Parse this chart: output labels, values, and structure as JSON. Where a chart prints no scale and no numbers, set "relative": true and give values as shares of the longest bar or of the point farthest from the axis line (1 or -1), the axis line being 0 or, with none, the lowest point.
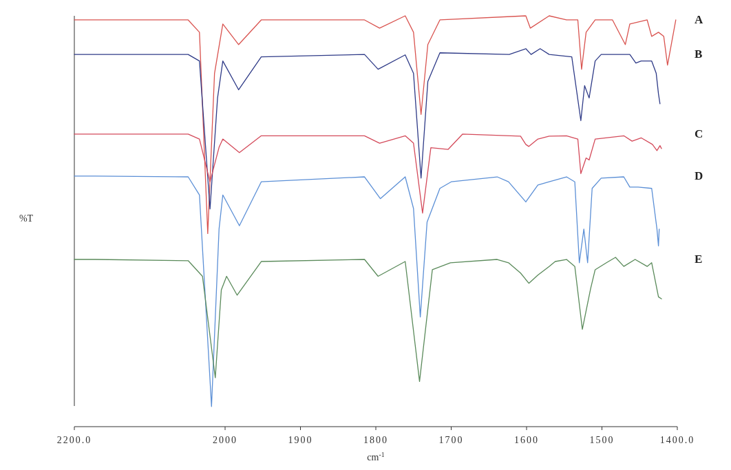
{
  "chart_data": {
    "type": "line",
    "xlabel": "cm$^{-1}$",
    "ylabel": "%T",
    "relative": true,
    "xlim": [
      2200,
      1400
    ],
    "xticks": [
      {
        "value": 2200,
        "label": "2200.0"
      },
      2000,
      1900,
      1800,
      1700,
      1600,
      1500,
      {
        "value": 1400,
        "label": "1400.0"
      }
    ],
    "series": [
      {
        "name": "A",
        "color": "#d9534f",
        "x": [
          2200,
          2172,
          2049,
          2034,
          2023,
          2014,
          2003,
          1982,
          1952,
          1815,
          1795,
          1761,
          1750,
          1740,
          1731,
          1715,
          1601,
          1595,
          1570,
          1547,
          1532,
          1527,
          1521,
          1509,
          1486,
          1469,
          1463,
          1440,
          1434,
          1425,
          1418,
          1413,
          1402
        ],
        "values": [
          0.99,
          0.99,
          0.99,
          0.96,
          0.47,
          0.86,
          0.98,
          0.93,
          0.99,
          0.99,
          0.97,
          1.0,
          0.96,
          0.76,
          0.93,
          0.99,
          1.0,
          0.97,
          1.0,
          0.99,
          0.99,
          0.87,
          0.96,
          0.99,
          0.99,
          0.93,
          0.98,
          0.99,
          0.95,
          0.96,
          0.95,
          0.88,
          0.99
        ]
      },
      {
        "name": "B",
        "color": "#2e3a87",
        "x": [
          2200,
          2172,
          2049,
          2034,
          2020,
          2010,
          2003,
          1982,
          1952,
          1815,
          1797,
          1761,
          1750,
          1740,
          1731,
          1715,
          1623,
          1601,
          1594,
          1582,
          1570,
          1540,
          1528,
          1523,
          1517,
          1509,
          1501,
          1463,
          1455,
          1448,
          1434,
          1428,
          1425,
          1423
        ],
        "values": [
          0.906,
          0.906,
          0.906,
          0.89,
          0.53,
          0.8,
          0.89,
          0.82,
          0.9,
          0.906,
          0.87,
          0.905,
          0.86,
          0.605,
          0.84,
          0.91,
          0.906,
          0.92,
          0.906,
          0.92,
          0.906,
          0.9,
          0.745,
          0.83,
          0.8,
          0.89,
          0.906,
          0.906,
          0.885,
          0.89,
          0.89,
          0.86,
          0.81,
          0.786
        ]
      },
      {
        "name": "C",
        "color": "#d44a5a",
        "x": [
          2200,
          2172,
          2049,
          2034,
          2020,
          2008,
          2003,
          1981,
          1952,
          1815,
          1795,
          1761,
          1750,
          1738,
          1727,
          1704,
          1685,
          1608,
          1601,
          1597,
          1585,
          1570,
          1547,
          1532,
          1528,
          1521,
          1517,
          1509,
          1471,
          1460,
          1448,
          1433,
          1427,
          1423,
          1421
        ],
        "values": [
          0.712,
          0.712,
          0.712,
          0.7,
          0.596,
          0.68,
          0.7,
          0.667,
          0.708,
          0.708,
          0.69,
          0.708,
          0.69,
          0.52,
          0.679,
          0.675,
          0.712,
          0.707,
          0.687,
          0.682,
          0.7,
          0.707,
          0.708,
          0.7,
          0.616,
          0.654,
          0.649,
          0.7,
          0.708,
          0.695,
          0.703,
          0.687,
          0.672,
          0.684,
          0.677
        ]
      },
      {
        "name": "D",
        "color": "#5b8fd6",
        "x": [
          2200,
          2172,
          2049,
          2034,
          2018,
          2008,
          2003,
          1981,
          1952,
          1815,
          1794,
          1761,
          1750,
          1741,
          1732,
          1715,
          1700,
          1639,
          1624,
          1601,
          1585,
          1570,
          1547,
          1536,
          1530,
          1524,
          1519,
          1513,
          1501,
          1471,
          1463,
          1452,
          1434,
          1427,
          1425,
          1424
        ],
        "values": [
          0.61,
          0.61,
          0.608,
          0.564,
          0.049,
          0.481,
          0.564,
          0.489,
          0.596,
          0.608,
          0.555,
          0.608,
          0.531,
          0.267,
          0.498,
          0.58,
          0.596,
          0.608,
          0.596,
          0.547,
          0.588,
          0.596,
          0.608,
          0.596,
          0.399,
          0.481,
          0.399,
          0.58,
          0.605,
          0.608,
          0.583,
          0.583,
          0.58,
          0.481,
          0.44,
          0.481
        ]
      },
      {
        "name": "E",
        "color": "#5a8a5a",
        "x": [
          2200,
          2172,
          2049,
          2030,
          2013,
          2005,
          1998,
          1984,
          1952,
          1815,
          1797,
          1761,
          1742,
          1725,
          1701,
          1639,
          1624,
          1608,
          1597,
          1585,
          1570,
          1562,
          1547,
          1536,
          1526,
          1519,
          1515,
          1509,
          1494,
          1482,
          1471,
          1456,
          1440,
          1434,
          1425,
          1421
        ],
        "values": [
          0.407,
          0.407,
          0.404,
          0.366,
          0.119,
          0.333,
          0.366,
          0.32,
          0.402,
          0.407,
          0.366,
          0.402,
          0.11,
          0.382,
          0.399,
          0.407,
          0.399,
          0.374,
          0.349,
          0.369,
          0.39,
          0.402,
          0.407,
          0.39,
          0.237,
          0.3,
          0.336,
          0.382,
          0.399,
          0.412,
          0.39,
          0.407,
          0.39,
          0.399,
          0.316,
          0.311
        ]
      }
    ]
  }
}
